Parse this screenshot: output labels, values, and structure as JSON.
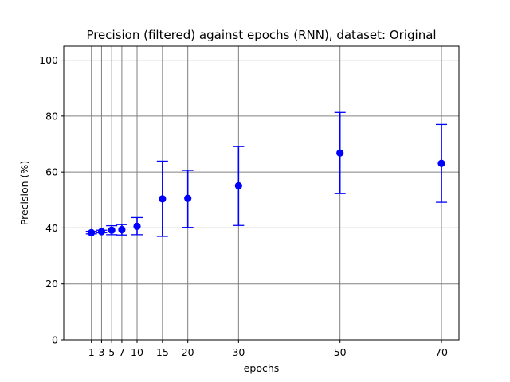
{
  "chart_data": {
    "type": "scatter",
    "title": "Precision (filtered) against epochs (RNN), dataset: Original",
    "xlabel": "epochs",
    "ylabel": "Precision (%)",
    "xlim": [
      -4.45,
      73.45
    ],
    "ylim": [
      0,
      105
    ],
    "x_ticks": [
      1,
      3,
      5,
      7,
      10,
      15,
      20,
      30,
      50,
      70
    ],
    "y_ticks": [
      0,
      20,
      40,
      60,
      80,
      100
    ],
    "grid": true,
    "legend": "none",
    "series": [
      {
        "x": [
          1,
          3,
          5,
          7,
          10,
          15,
          20,
          30,
          50,
          70
        ],
        "y": [
          38.3,
          38.7,
          39.2,
          39.4,
          40.6,
          50.4,
          50.6,
          55.1,
          66.8,
          63.1
        ],
        "yerr_low": [
          37.9,
          38.3,
          37.6,
          37.5,
          37.6,
          37.0,
          40.2,
          40.9,
          52.3,
          49.2
        ],
        "yerr_high": [
          38.8,
          39.2,
          40.8,
          41.2,
          43.7,
          63.9,
          60.6,
          69.1,
          81.3,
          77.0
        ]
      }
    ],
    "colors": {
      "points": "#0000ff",
      "grid": "#808080",
      "axes": "#000000"
    }
  }
}
